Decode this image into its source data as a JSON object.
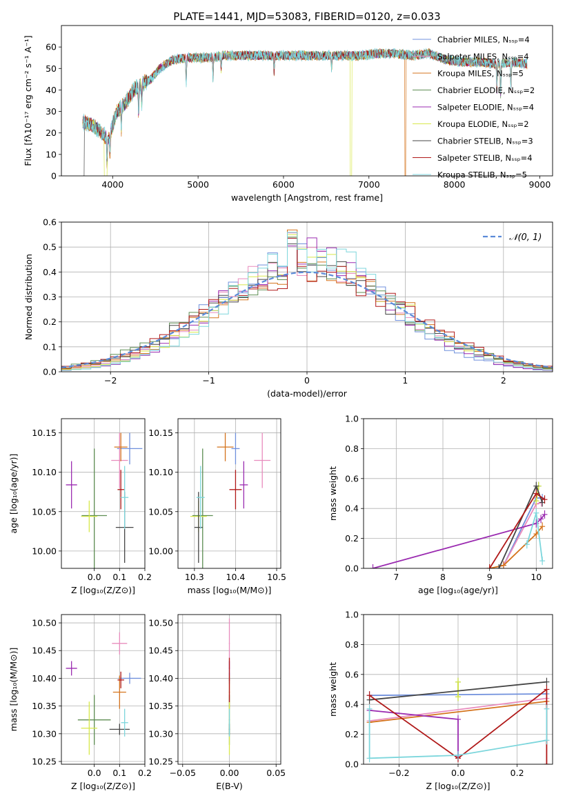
{
  "colors": {
    "chabrier_miles": "#6f8fdc",
    "salpeter_miles": "#e88bbd",
    "kroupa_miles": "#d4731c",
    "chabrier_elodie": "#5d8d52",
    "salpeter_elodie": "#9a2ab0",
    "kroupa_elodie": "#d8e84a",
    "chabrier_stelib": "#444444",
    "salpeter_stelib": "#b01818",
    "kroupa_stelib": "#7cd6dc",
    "gaussian": "#5b8ad8"
  },
  "chart_data": [
    {
      "id": "spectrum",
      "type": "line",
      "title": "PLATE=1441, MJD=53083, FIBERID=0120, z=0.033",
      "xlabel": "wavelength [Angstrom, rest frame]",
      "ylabel": "Flux [fλ10⁻¹⁷ erg cm⁻² s⁻¹ A⁻¹]",
      "xlim": [
        3400,
        9150
      ],
      "ylim": [
        0,
        70
      ],
      "xticks": [
        4000,
        5000,
        6000,
        7000,
        8000,
        9000
      ],
      "yticks": [
        0,
        10,
        20,
        30,
        40,
        50,
        60
      ],
      "legend_position": "top-right",
      "series": [
        {
          "name": "Chabrier MILES, Nₛₛₚ=4",
          "color_key": "chabrier_miles"
        },
        {
          "name": "Salpeter MILES, Nₛₛₚ=4",
          "color_key": "salpeter_miles"
        },
        {
          "name": "Kroupa MILES, Nₛₛₚ=5",
          "color_key": "kroupa_miles"
        },
        {
          "name": "Chabrier ELODIE, Nₛₛₚ=2",
          "color_key": "chabrier_elodie"
        },
        {
          "name": "Salpeter ELODIE, Nₛₛₚ=4",
          "color_key": "salpeter_elodie"
        },
        {
          "name": "Kroupa ELODIE, Nₛₛₚ=2",
          "color_key": "kroupa_elodie"
        },
        {
          "name": "Chabrier STELIB, Nₛₛₚ=3",
          "color_key": "chabrier_stelib"
        },
        {
          "name": "Salpeter STELIB, Nₛₛₚ=4",
          "color_key": "salpeter_stelib"
        },
        {
          "name": "Kroupa STELIB, Nₛₛₚ=5",
          "color_key": "kroupa_stelib"
        }
      ],
      "continuum": {
        "x": [
          3650,
          3750,
          3850,
          3950,
          4050,
          4150,
          4250,
          4350,
          4450,
          4550,
          4700,
          4850,
          5000,
          5150,
          5300,
          5500,
          5700,
          5900,
          6100,
          6300,
          6500,
          6700,
          6900,
          7100,
          7300,
          7500,
          7700,
          7900,
          8100,
          8300,
          8500,
          8700,
          8850
        ],
        "y": [
          25,
          24,
          21,
          17,
          30,
          34,
          40,
          43,
          45,
          50,
          54,
          55,
          55,
          55,
          56,
          56,
          56,
          56,
          56,
          56,
          56,
          56,
          56,
          57,
          57,
          56,
          57,
          54,
          53,
          53,
          52,
          53,
          52
        ]
      },
      "wavelength_range": [
        3650,
        8850
      ]
    },
    {
      "id": "residuals",
      "type": "histogram",
      "xlabel": "(data-model)/error",
      "ylabel": "Normed distribution",
      "xlim": [
        -2.5,
        2.5
      ],
      "ylim": [
        0,
        0.6
      ],
      "xticks": [
        -2,
        -1,
        0,
        1,
        2
      ],
      "yticks": [
        0.0,
        0.1,
        0.2,
        0.3,
        0.4,
        0.5,
        0.6
      ],
      "grid": true,
      "legend_position": "top-right",
      "reference_curve": {
        "name": "𝒩(0, 1)",
        "mean": 0,
        "sigma": 1
      },
      "bin_width": 0.1
    },
    {
      "id": "age_vs_Z",
      "type": "scatter",
      "xlabel": "Z [log₁₀(Z/Z⊙)]",
      "ylabel": "age  [log₁₀(age/yr)]",
      "xlim": [
        -0.13,
        0.2
      ],
      "ylim": [
        9.978,
        10.168
      ],
      "xticks": [
        0.0,
        0.1,
        0.2
      ],
      "yticks": [
        10.0,
        10.05,
        10.1,
        10.15
      ],
      "grid": true,
      "points": [
        {
          "key": "chabrier_miles",
          "x": 0.14,
          "y": 10.13,
          "xerr": 0.05,
          "yerr": 0.02
        },
        {
          "key": "salpeter_miles",
          "x": 0.1,
          "y": 10.115,
          "xerr": 0.033,
          "yerr": 0.035
        },
        {
          "key": "kroupa_miles",
          "x": 0.105,
          "y": 10.132,
          "xerr": 0.026,
          "yerr": 0.018
        },
        {
          "key": "chabrier_elodie",
          "x": 0.0,
          "y": 10.045,
          "xerr": 0.05,
          "yerr": 0.085
        },
        {
          "key": "salpeter_elodie",
          "x": -0.09,
          "y": 10.084,
          "xerr": 0.022,
          "yerr": 0.03
        },
        {
          "key": "kroupa_elodie",
          "x": -0.02,
          "y": 10.044,
          "xerr": 0.032,
          "yerr": 0.02
        },
        {
          "key": "chabrier_stelib",
          "x": 0.12,
          "y": 10.03,
          "xerr": 0.035,
          "yerr": 0.045
        },
        {
          "key": "salpeter_stelib",
          "x": 0.105,
          "y": 10.078,
          "xerr": 0.013,
          "yerr": 0.025
        },
        {
          "key": "kroupa_stelib",
          "x": 0.12,
          "y": 10.068,
          "xerr": 0.015,
          "yerr": 0.04
        }
      ]
    },
    {
      "id": "age_vs_mass",
      "type": "scatter",
      "xlabel": "mass [log₁₀(M/M⊙)]",
      "ylabel": "",
      "xlim": [
        10.26,
        10.51
      ],
      "ylim": [
        9.978,
        10.168
      ],
      "xticks": [
        10.3,
        10.4,
        10.5
      ],
      "yticks": [
        10.0,
        10.05,
        10.1,
        10.15
      ],
      "grid": true,
      "points": [
        {
          "key": "chabrier_miles",
          "x": 10.4,
          "y": 10.13,
          "xerr": 0.01,
          "yerr": 0.02
        },
        {
          "key": "salpeter_miles",
          "x": 10.465,
          "y": 10.115,
          "xerr": 0.02,
          "yerr": 0.035
        },
        {
          "key": "kroupa_miles",
          "x": 10.375,
          "y": 10.132,
          "xerr": 0.02,
          "yerr": 0.018
        },
        {
          "key": "chabrier_elodie",
          "x": 10.32,
          "y": 10.045,
          "xerr": 0.025,
          "yerr": 0.085
        },
        {
          "key": "salpeter_elodie",
          "x": 10.42,
          "y": 10.084,
          "xerr": 0.01,
          "yerr": 0.03
        },
        {
          "key": "kroupa_elodie",
          "x": 10.31,
          "y": 10.044,
          "xerr": 0.02,
          "yerr": 0.02
        },
        {
          "key": "chabrier_stelib",
          "x": 10.31,
          "y": 10.03,
          "xerr": 0.01,
          "yerr": 0.045
        },
        {
          "key": "salpeter_stelib",
          "x": 10.4,
          "y": 10.078,
          "xerr": 0.015,
          "yerr": 0.025
        },
        {
          "key": "kroupa_stelib",
          "x": 10.315,
          "y": 10.068,
          "xerr": 0.01,
          "yerr": 0.04
        }
      ]
    },
    {
      "id": "weight_vs_age",
      "type": "line",
      "xlabel": "age  [log₁₀(age/yr)]",
      "ylabel": "mass weight",
      "xlim": [
        6.3,
        10.35
      ],
      "ylim": [
        0,
        1.0
      ],
      "xticks": [
        7,
        8,
        9,
        10
      ],
      "yticks": [
        0.0,
        0.2,
        0.4,
        0.6,
        0.8,
        1.0
      ],
      "grid": true,
      "series": [
        {
          "key": "chabrier_miles",
          "x": [
            9.3,
            10.0,
            10.13
          ],
          "y": [
            0.02,
            0.47,
            0.47
          ]
        },
        {
          "key": "salpeter_miles",
          "x": [
            9.3,
            10.0,
            10.11
          ],
          "y": [
            0.02,
            0.43,
            0.44
          ]
        },
        {
          "key": "kroupa_miles",
          "x": [
            9.0,
            9.3,
            10.0,
            10.13
          ],
          "y": [
            0.0,
            0.02,
            0.23,
            0.28
          ]
        },
        {
          "key": "chabrier_elodie",
          "x": [
            10.0,
            10.05
          ],
          "y": [
            0.45,
            0.55
          ]
        },
        {
          "key": "salpeter_elodie",
          "x": [
            6.5,
            10.0,
            10.1,
            10.18
          ],
          "y": [
            0.0,
            0.3,
            0.33,
            0.36
          ]
        },
        {
          "key": "kroupa_elodie",
          "x": [
            10.0,
            10.05
          ],
          "y": [
            0.45,
            0.55
          ]
        },
        {
          "key": "chabrier_stelib",
          "x": [
            9.2,
            10.0,
            10.13
          ],
          "y": [
            0.0,
            0.55,
            0.44
          ]
        },
        {
          "key": "salpeter_stelib",
          "x": [
            9.0,
            10.0,
            10.18
          ],
          "y": [
            0.0,
            0.5,
            0.46
          ]
        },
        {
          "key": "kroupa_stelib",
          "x": [
            9.8,
            10.0,
            10.13
          ],
          "y": [
            0.16,
            0.37,
            0.05
          ]
        }
      ]
    },
    {
      "id": "mass_vs_Z",
      "type": "scatter",
      "xlabel": "Z [log₁₀(Z/Z⊙)]",
      "ylabel": "mass [log₁₀(M/M⊙)]",
      "xlim": [
        -0.13,
        0.2
      ],
      "ylim": [
        10.245,
        10.515
      ],
      "xticks": [
        0.0,
        0.1,
        0.2
      ],
      "yticks": [
        10.25,
        10.3,
        10.35,
        10.4,
        10.45,
        10.5
      ],
      "grid": true,
      "points": [
        {
          "key": "chabrier_miles",
          "x": 0.14,
          "y": 10.4,
          "xerr": 0.045,
          "yerr": 0.01
        },
        {
          "key": "salpeter_miles",
          "x": 0.1,
          "y": 10.463,
          "xerr": 0.03,
          "yerr": 0.02
        },
        {
          "key": "kroupa_miles",
          "x": 0.1,
          "y": 10.375,
          "xerr": 0.026,
          "yerr": 0.03
        },
        {
          "key": "chabrier_elodie",
          "x": 0.0,
          "y": 10.325,
          "xerr": 0.065,
          "yerr": 0.045
        },
        {
          "key": "salpeter_elodie",
          "x": -0.09,
          "y": 10.418,
          "xerr": 0.022,
          "yerr": 0.013
        },
        {
          "key": "kroupa_elodie",
          "x": -0.02,
          "y": 10.31,
          "xerr": 0.032,
          "yerr": 0.048
        },
        {
          "key": "chabrier_stelib",
          "x": 0.1,
          "y": 10.308,
          "xerr": 0.04,
          "yerr": 0.01
        },
        {
          "key": "salpeter_stelib",
          "x": 0.105,
          "y": 10.397,
          "xerr": 0.013,
          "yerr": 0.015
        },
        {
          "key": "kroupa_stelib",
          "x": 0.12,
          "y": 10.32,
          "xerr": 0.014,
          "yerr": 0.025
        }
      ]
    },
    {
      "id": "mass_vs_ebv",
      "type": "scatter",
      "xlabel": "E(B-V)",
      "ylabel": "",
      "xlim": [
        -0.055,
        0.055
      ],
      "ylim": [
        10.245,
        10.515
      ],
      "xticks": [
        -0.05,
        0.0,
        0.05
      ],
      "yticks": [
        10.25,
        10.3,
        10.35,
        10.4,
        10.45,
        10.5
      ],
      "grid": true,
      "points": [
        {
          "key": "chabrier_miles",
          "x": 0.0,
          "y": 10.4,
          "xerr": 0.0005,
          "yerr": 0.01
        },
        {
          "key": "salpeter_miles",
          "x": 0.0,
          "y": 10.463,
          "xerr": 0.0005,
          "yerr": 0.045
        },
        {
          "key": "kroupa_miles",
          "x": 0.0,
          "y": 10.375,
          "xerr": 0.0005,
          "yerr": 0.03
        },
        {
          "key": "chabrier_elodie",
          "x": 0.0,
          "y": 10.325,
          "xerr": 0.0005,
          "yerr": 0.045
        },
        {
          "key": "salpeter_elodie",
          "x": 0.0,
          "y": 10.418,
          "xerr": 0.0005,
          "yerr": 0.013
        },
        {
          "key": "kroupa_elodie",
          "x": 0.0,
          "y": 10.31,
          "xerr": 0.0005,
          "yerr": 0.048
        },
        {
          "key": "chabrier_stelib",
          "x": 0.0,
          "y": 10.308,
          "xerr": 0.0005,
          "yerr": 0.01
        },
        {
          "key": "salpeter_stelib",
          "x": 0.0,
          "y": 10.397,
          "xerr": 0.0005,
          "yerr": 0.04
        },
        {
          "key": "kroupa_stelib",
          "x": 0.0,
          "y": 10.32,
          "xerr": 0.0005,
          "yerr": 0.025
        }
      ]
    },
    {
      "id": "weight_vs_Z",
      "type": "line",
      "xlabel": "Z [log₁₀(Z/Z⊙)]",
      "ylabel": "mass weight",
      "xlim": [
        -0.32,
        0.32
      ],
      "ylim": [
        0,
        1.0
      ],
      "xticks": [
        -0.2,
        0.0,
        0.2
      ],
      "yticks": [
        0.0,
        0.2,
        0.4,
        0.6,
        0.8,
        1.0
      ],
      "grid": true,
      "series": [
        {
          "key": "chabrier_miles",
          "x": [
            -0.3,
            0.3
          ],
          "y": [
            0.46,
            0.47
          ]
        },
        {
          "key": "salpeter_miles",
          "x": [
            -0.3,
            0.3
          ],
          "y": [
            0.29,
            0.44
          ]
        },
        {
          "key": "kroupa_miles",
          "x": [
            -0.3,
            0.3
          ],
          "y": [
            0.28,
            0.42
          ]
        },
        {
          "key": "chabrier_elodie",
          "x": [
            0.0,
            0.0
          ],
          "y": [
            0.45,
            0.55
          ]
        },
        {
          "key": "salpeter_elodie",
          "x": [
            -0.3,
            0.0,
            0.0
          ],
          "y": [
            0.36,
            0.3,
            0.05
          ]
        },
        {
          "key": "kroupa_elodie",
          "x": [
            0.0,
            0.0
          ],
          "y": [
            0.55,
            0.45
          ]
        },
        {
          "key": "chabrier_stelib",
          "x": [
            -0.3,
            0.3
          ],
          "y": [
            0.43,
            0.55
          ]
        },
        {
          "key": "salpeter_stelib",
          "x": [
            -0.3,
            0.0,
            0.3,
            0.3
          ],
          "y": [
            0.46,
            0.04,
            0.5,
            0.0
          ]
        },
        {
          "key": "kroupa_stelib",
          "x": [
            -0.3,
            -0.3,
            0.0,
            0.3,
            0.3
          ],
          "y": [
            0.37,
            0.04,
            0.06,
            0.16,
            0.37
          ]
        }
      ]
    }
  ]
}
